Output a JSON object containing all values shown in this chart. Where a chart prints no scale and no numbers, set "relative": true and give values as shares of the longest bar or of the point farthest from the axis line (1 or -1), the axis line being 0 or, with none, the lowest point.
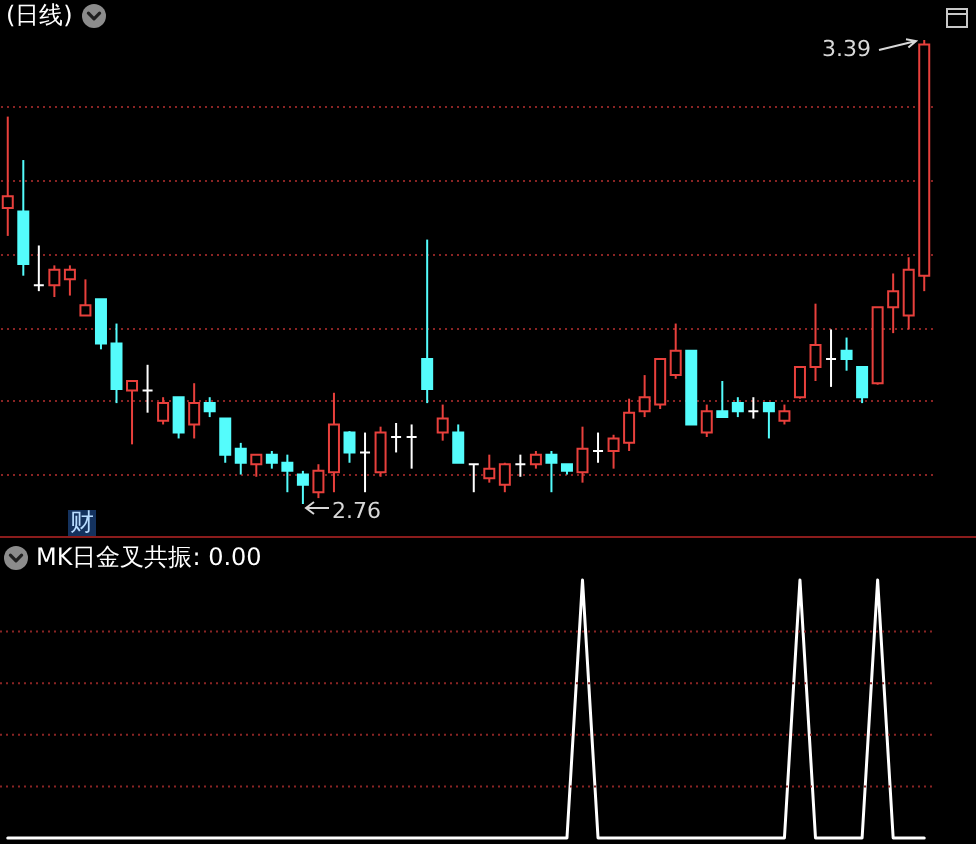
{
  "chart_data": [
    {
      "type": "candlestick",
      "title": "(日线)",
      "annotations": [
        "3.39",
        "2.76",
        "财"
      ],
      "categories": [
        null,
        null,
        null,
        null,
        null,
        null,
        null,
        null,
        null,
        null,
        null,
        null,
        null,
        null,
        null,
        null,
        null,
        null,
        null,
        null,
        null,
        null,
        null,
        null,
        null,
        null,
        null,
        null,
        null,
        null,
        null,
        null,
        null,
        null,
        null,
        null,
        null,
        null,
        null,
        null,
        null,
        null,
        null,
        null,
        null,
        null,
        null,
        null,
        null,
        null,
        null,
        null,
        null,
        null,
        null,
        null,
        null,
        null,
        null,
        null
      ],
      "ohlc": [
        [
          3.162,
          3.286,
          3.124,
          3.178
        ],
        [
          3.157,
          3.227,
          3.07,
          3.086
        ],
        [
          3.057,
          3.111,
          3.049,
          3.057
        ],
        [
          3.057,
          3.084,
          3.041,
          3.078
        ],
        [
          3.065,
          3.084,
          3.043,
          3.078
        ],
        [
          3.016,
          3.065,
          3.016,
          3.03
        ],
        [
          3.038,
          3.038,
          2.97,
          2.978
        ],
        [
          2.978,
          3.005,
          2.897,
          2.916
        ],
        [
          2.914,
          2.927,
          2.841,
          2.927
        ],
        [
          2.914,
          2.949,
          2.884,
          2.914
        ],
        [
          2.873,
          2.905,
          2.868,
          2.897
        ],
        [
          2.905,
          2.905,
          2.849,
          2.857
        ],
        [
          2.868,
          2.924,
          2.849,
          2.897
        ],
        [
          2.897,
          2.905,
          2.878,
          2.886
        ],
        [
          2.876,
          2.876,
          2.816,
          2.827
        ],
        [
          2.835,
          2.843,
          2.8,
          2.816
        ],
        [
          2.814,
          2.827,
          2.797,
          2.827
        ],
        [
          2.827,
          2.832,
          2.808,
          2.816
        ],
        [
          2.816,
          2.827,
          2.776,
          2.805
        ],
        [
          2.8,
          2.805,
          2.76,
          2.786
        ],
        [
          2.776,
          2.814,
          2.768,
          2.805
        ],
        [
          2.803,
          2.911,
          2.776,
          2.868
        ],
        [
          2.857,
          2.859,
          2.816,
          2.83
        ],
        [
          2.83,
          2.857,
          2.776,
          2.83
        ],
        [
          2.803,
          2.865,
          2.797,
          2.857
        ],
        [
          2.851,
          2.87,
          2.83,
          2.851
        ],
        [
          2.851,
          2.868,
          2.808,
          2.851
        ],
        [
          2.957,
          3.119,
          2.897,
          2.916
        ],
        [
          2.857,
          2.895,
          2.846,
          2.876
        ],
        [
          2.857,
          2.868,
          2.816,
          2.816
        ],
        [
          2.814,
          2.814,
          2.776,
          2.814
        ],
        [
          2.795,
          2.827,
          2.789,
          2.808
        ],
        [
          2.786,
          2.816,
          2.776,
          2.814
        ],
        [
          2.814,
          2.827,
          2.797,
          2.814
        ],
        [
          2.814,
          2.832,
          2.808,
          2.827
        ],
        [
          2.827,
          2.832,
          2.776,
          2.816
        ],
        [
          2.814,
          2.814,
          2.8,
          2.805
        ],
        [
          2.803,
          2.865,
          2.789,
          2.835
        ],
        [
          2.832,
          2.857,
          2.816,
          2.832
        ],
        [
          2.832,
          2.854,
          2.808,
          2.849
        ],
        [
          2.843,
          2.903,
          2.832,
          2.884
        ],
        [
          2.886,
          2.935,
          2.878,
          2.905
        ],
        [
          2.895,
          2.957,
          2.889,
          2.957
        ],
        [
          2.935,
          3.005,
          2.93,
          2.968
        ],
        [
          2.968,
          2.968,
          2.868,
          2.868
        ],
        [
          2.857,
          2.895,
          2.851,
          2.886
        ],
        [
          2.886,
          2.927,
          2.878,
          2.878
        ],
        [
          2.897,
          2.905,
          2.878,
          2.886
        ],
        [
          2.886,
          2.905,
          2.876,
          2.886
        ],
        [
          2.897,
          2.897,
          2.849,
          2.886
        ],
        [
          2.873,
          2.895,
          2.868,
          2.886
        ],
        [
          2.905,
          2.946,
          2.903,
          2.946
        ],
        [
          2.946,
          3.032,
          2.927,
          2.976
        ],
        [
          2.957,
          2.997,
          2.919,
          2.957
        ],
        [
          2.968,
          2.986,
          2.941,
          2.957
        ],
        [
          2.946,
          2.946,
          2.897,
          2.905
        ],
        [
          2.924,
          3.027,
          2.922,
          3.027
        ],
        [
          3.027,
          3.073,
          2.992,
          3.049
        ],
        [
          3.016,
          3.095,
          2.997,
          3.078
        ],
        [
          3.07,
          3.39,
          3.049,
          3.384
        ]
      ],
      "colors": [
        "#e8403c",
        "#54fcfc",
        "#ffffff",
        "#e8403c",
        "#e8403c",
        "#e8403c",
        "#54fcfc",
        "#54fcfc",
        "#e8403c",
        "#ffffff",
        "#e8403c",
        "#54fcfc",
        "#e8403c",
        "#54fcfc",
        "#54fcfc",
        "#54fcfc",
        "#e8403c",
        "#54fcfc",
        "#54fcfc",
        "#54fcfc",
        "#e8403c",
        "#e8403c",
        "#54fcfc",
        "#ffffff",
        "#e8403c",
        "#ffffff",
        "#ffffff",
        "#54fcfc",
        "#e8403c",
        "#54fcfc",
        "#ffffff",
        "#e8403c",
        "#e8403c",
        "#ffffff",
        "#e8403c",
        "#54fcfc",
        "#54fcfc",
        "#e8403c",
        "#ffffff",
        "#e8403c",
        "#e8403c",
        "#e8403c",
        "#e8403c",
        "#e8403c",
        "#54fcfc",
        "#e8403c",
        "#54fcfc",
        "#54fcfc",
        "#ffffff",
        "#54fcfc",
        "#e8403c",
        "#e8403c",
        "#e8403c",
        "#ffffff",
        "#54fcfc",
        "#54fcfc",
        "#e8403c",
        "#e8403c",
        "#e8403c",
        "#e8403c"
      ],
      "yticks": [
        {
          "value": 2.8,
          "label": null
        },
        {
          "value": 2.9,
          "label": null
        },
        {
          "value": 3.0,
          "label": null
        },
        {
          "value": 3.1,
          "label": null
        },
        {
          "value": 3.2,
          "label": null
        },
        {
          "value": 3.3,
          "label": null
        }
      ],
      "grid": "y"
    },
    {
      "type": "line",
      "title": "MK日金叉共振: 0.00",
      "relative": true,
      "categories": [
        null,
        null,
        null,
        null,
        null,
        null,
        null,
        null,
        null,
        null,
        null,
        null,
        null,
        null,
        null,
        null,
        null,
        null,
        null,
        null,
        null,
        null,
        null,
        null,
        null,
        null,
        null,
        null,
        null,
        null,
        null,
        null,
        null,
        null,
        null,
        null,
        null,
        null,
        null,
        null,
        null,
        null,
        null,
        null,
        null,
        null,
        null,
        null,
        null,
        null,
        null,
        null,
        null,
        null,
        null,
        null,
        null,
        null,
        null,
        null
      ],
      "series": [
        {
          "color": "#ffffff",
          "values": [
            0,
            0,
            0,
            0,
            0,
            0,
            0,
            0,
            0,
            0,
            0,
            0,
            0,
            0,
            0,
            0,
            0,
            0,
            0,
            0,
            0,
            0,
            0,
            0,
            0,
            0,
            0,
            0,
            0,
            0,
            0,
            0,
            0,
            0,
            0,
            0,
            0,
            1,
            0,
            0,
            0,
            0,
            0,
            0,
            0,
            0,
            0,
            0,
            0,
            0,
            0,
            1,
            0,
            0,
            0,
            0,
            1,
            0,
            0,
            0
          ]
        }
      ],
      "ref_lines": [
        {
          "axis": "y",
          "value": 0.2,
          "color": "#8a2424",
          "line_style": "dotted"
        },
        {
          "axis": "y",
          "value": 0.4,
          "color": "#8a2424",
          "line_style": "dotted"
        },
        {
          "axis": "y",
          "value": 0.6,
          "color": "#8a2424",
          "line_style": "dotted"
        },
        {
          "axis": "y",
          "value": 0.8,
          "color": "#8a2424",
          "line_style": "dotted"
        }
      ]
    }
  ]
}
